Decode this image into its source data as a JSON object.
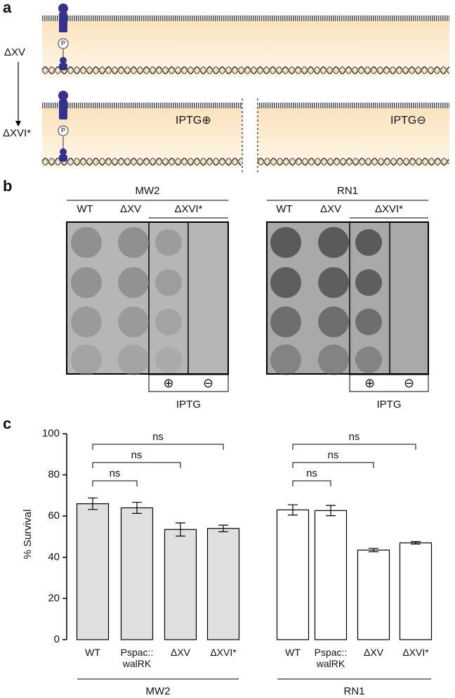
{
  "panel_labels": [
    "a",
    "b",
    "c"
  ],
  "diagram": {
    "strains": [
      "ΔXV",
      "ΔXVI*"
    ],
    "phospho": [
      "P",
      "P"
    ],
    "conditions": [
      "IPTG⊕",
      "IPTG⊖"
    ]
  },
  "plates": [
    {
      "strain": "MW2",
      "columns": [
        "WT",
        "ΔXV",
        "ΔXVI*"
      ],
      "inducer": [
        "⊕",
        "⊖"
      ],
      "inducer_label": "IPTG"
    },
    {
      "strain": "RN1",
      "columns": [
        "WT",
        "ΔXV",
        "ΔXVI*"
      ],
      "inducer": [
        "⊕",
        "⊖"
      ],
      "inducer_label": "IPTG"
    }
  ],
  "chart_data": {
    "type": "bar",
    "y_label": "% Survival",
    "ylim": [
      0,
      100
    ],
    "yticks": [
      0,
      20,
      40,
      60,
      80,
      100
    ],
    "categories": [
      "WT",
      "Pspac::\nwalRK",
      "ΔXV",
      "ΔXVI*"
    ],
    "series": [
      {
        "name": "MW2",
        "color": "#e0e0e0",
        "values": [
          66,
          64,
          53.5,
          54
        ],
        "errors": [
          2.8,
          2.7,
          3.2,
          1.6
        ],
        "annotations": [
          "ns",
          "ns",
          "ns"
        ]
      },
      {
        "name": "RN1",
        "color": "#ffffff",
        "values": [
          63,
          62.7,
          43.5,
          47
        ],
        "errors": [
          2.5,
          2.5,
          0.8,
          0.6
        ],
        "annotations": [
          "ns",
          "ns",
          "ns"
        ]
      }
    ]
  }
}
